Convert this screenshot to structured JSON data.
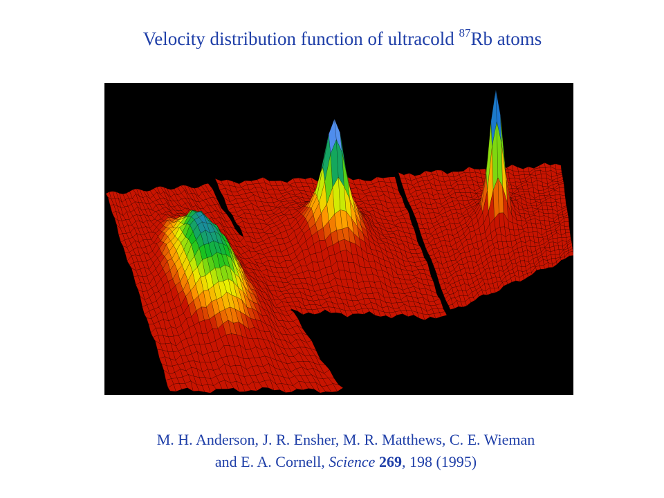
{
  "slide": {
    "title_main": "Velocity distribution function of ultracold ",
    "title_superscript": "87",
    "title_rest": "Rb atoms"
  },
  "citation": {
    "line1": "M. H. Anderson, J. R. Ensher, M. R. Matthews, C. E. Wieman",
    "line2_prefix": "and E. A. Cornell, ",
    "journal": "Science",
    "volume": "269",
    "line2_suffix": ", 198 (1995)"
  },
  "colors": {
    "text": "#1f3fa8",
    "figure_background": "#000000",
    "surface_low": "#c81400",
    "surface_mid_low": "#ff9900",
    "surface_mid": "#e8f000",
    "surface_mid_high": "#10c020",
    "surface_high": "#1e6ee8",
    "surface_peak": "#ffffff"
  },
  "figure": {
    "panels": [
      {
        "peak_level": 0.45,
        "peak_shape": "broad"
      },
      {
        "peak_level": 0.95,
        "peak_shape": "narrow-on-broad"
      },
      {
        "peak_level": 1.0,
        "peak_shape": "narrow"
      }
    ]
  }
}
